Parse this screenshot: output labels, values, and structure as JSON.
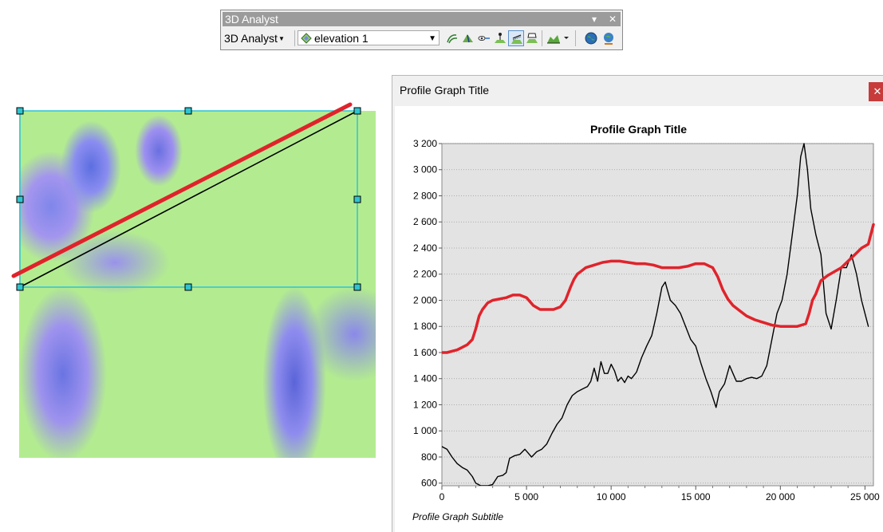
{
  "toolbar": {
    "title": "3D Analyst",
    "menu_label": "3D Analyst",
    "layer_value": "elevation 1",
    "pin_glyph": "▾",
    "close_glyph": "✕",
    "tools": [
      {
        "name": "contour-icon"
      },
      {
        "name": "steepest-path-icon"
      },
      {
        "name": "line-of-sight-icon"
      },
      {
        "name": "interpolate-point-icon"
      },
      {
        "name": "interpolate-line-icon",
        "active": true
      },
      {
        "name": "interpolate-polygon-icon"
      },
      {
        "name": "profile-graph-icon"
      },
      {
        "name": "arcglobe-icon"
      },
      {
        "name": "arcscene-icon"
      }
    ]
  },
  "profile_window": {
    "title": "Profile Graph Title",
    "close_glyph": "✕"
  },
  "colors": {
    "original_profile": "#000000",
    "new_profile": "#e0232b",
    "selection": "#2ec4d0",
    "plot_bg": "#e3e3e3"
  },
  "chart_data": {
    "type": "line",
    "title": "Profile Graph Title",
    "subtitle": "Profile Graph Subtitle",
    "xlim": [
      0,
      25500
    ],
    "ylim": [
      580,
      3200
    ],
    "xticks": [
      0,
      5000,
      10000,
      15000,
      20000,
      25000
    ],
    "xtick_labels": [
      "0",
      "5 000",
      "10 000",
      "15 000",
      "20 000",
      "25 000"
    ],
    "yticks": [
      600,
      800,
      1000,
      1200,
      1400,
      1600,
      1800,
      2000,
      2200,
      2400,
      2600,
      2800,
      3000,
      3200
    ],
    "ytick_labels": [
      "600",
      "800",
      "1 000",
      "1 200",
      "1 400",
      "1 600",
      "1 800",
      "2 000",
      "2 200",
      "2 400",
      "2 600",
      "2 800",
      "3 000",
      "3 200"
    ],
    "grid": true,
    "series": [
      {
        "color": "#000000",
        "x": [
          0,
          300,
          600,
          900,
          1200,
          1500,
          1800,
          2000,
          2300,
          2700,
          3000,
          3300,
          3600,
          3800,
          4000,
          4300,
          4600,
          4900,
          5100,
          5300,
          5600,
          5900,
          6200,
          6500,
          6800,
          7100,
          7400,
          7700,
          8000,
          8300,
          8600,
          8800,
          9000,
          9200,
          9400,
          9600,
          9800,
          10000,
          10200,
          10400,
          10600,
          10800,
          11000,
          11200,
          11500,
          11800,
          12100,
          12400,
          12700,
          13000,
          13200,
          13300,
          13500,
          13800,
          14100,
          14400,
          14700,
          15000,
          15300,
          15600,
          15900,
          16200,
          16400,
          16700,
          17000,
          17200,
          17400,
          17700,
          18000,
          18300,
          18600,
          18900,
          19200,
          19500,
          19800,
          20100,
          20400,
          20700,
          21000,
          21200,
          21400,
          21600,
          21800,
          22100,
          22400,
          22700,
          23000,
          23300,
          23600,
          23900,
          24200,
          24500,
          24800,
          25200
        ],
        "y": [
          880,
          860,
          800,
          750,
          720,
          700,
          650,
          600,
          580,
          580,
          590,
          650,
          660,
          680,
          790,
          810,
          820,
          860,
          830,
          800,
          840,
          860,
          900,
          980,
          1050,
          1100,
          1200,
          1270,
          1300,
          1320,
          1340,
          1380,
          1480,
          1380,
          1530,
          1440,
          1440,
          1510,
          1460,
          1380,
          1410,
          1370,
          1420,
          1400,
          1450,
          1560,
          1650,
          1730,
          1900,
          2100,
          2140,
          2090,
          2000,
          1960,
          1900,
          1800,
          1700,
          1650,
          1520,
          1400,
          1300,
          1180,
          1300,
          1360,
          1500,
          1440,
          1380,
          1380,
          1400,
          1410,
          1400,
          1420,
          1500,
          1700,
          1900,
          2000,
          2200,
          2500,
          2800,
          3100,
          3200,
          3000,
          2700,
          2500,
          2350,
          1900,
          1780,
          2000,
          2250,
          2250,
          2350,
          2200,
          2000,
          1800
        ]
      },
      {
        "color": "#e0232b",
        "x": [
          0,
          300,
          600,
          900,
          1200,
          1500,
          1800,
          2000,
          2200,
          2400,
          2700,
          3000,
          3400,
          3800,
          4200,
          4600,
          5000,
          5400,
          5800,
          6200,
          6600,
          7000,
          7300,
          7600,
          7800,
          8000,
          8200,
          8500,
          9000,
          9500,
          10000,
          10500,
          11000,
          11500,
          12000,
          12500,
          13000,
          13500,
          14000,
          14500,
          15000,
          15500,
          16000,
          16300,
          16600,
          16900,
          17200,
          17600,
          18000,
          18500,
          19000,
          19500,
          20000,
          20500,
          21000,
          21500,
          21700,
          21900,
          22100,
          22400,
          22800,
          23200,
          23600,
          24000,
          24400,
          24800,
          25200,
          25500
        ],
        "y": [
          1600,
          1600,
          1610,
          1620,
          1640,
          1660,
          1700,
          1780,
          1880,
          1930,
          1980,
          2000,
          2010,
          2020,
          2040,
          2040,
          2020,
          1960,
          1930,
          1930,
          1930,
          1950,
          2000,
          2100,
          2160,
          2200,
          2220,
          2250,
          2270,
          2290,
          2300,
          2300,
          2290,
          2280,
          2280,
          2270,
          2250,
          2250,
          2250,
          2260,
          2280,
          2280,
          2250,
          2180,
          2080,
          2010,
          1960,
          1920,
          1880,
          1850,
          1830,
          1810,
          1800,
          1800,
          1800,
          1820,
          1900,
          2000,
          2050,
          2150,
          2190,
          2220,
          2250,
          2300,
          2350,
          2400,
          2430,
          2580
        ]
      }
    ]
  }
}
